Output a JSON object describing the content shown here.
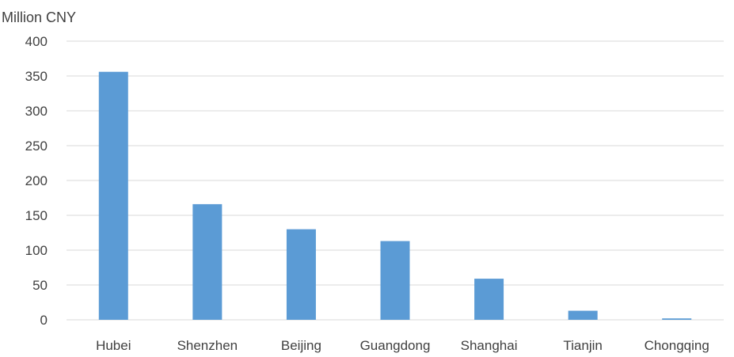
{
  "chart_data": {
    "type": "bar",
    "ylabel": "Million CNY",
    "xlabel": "",
    "categories": [
      "Hubei",
      "Shenzhen",
      "Beijing",
      "Guangdong",
      "Shanghai",
      "Tianjin",
      "Chongqing"
    ],
    "values": [
      356,
      166,
      130,
      113,
      59,
      13,
      2
    ],
    "ylim": [
      0,
      400
    ],
    "yticks": [
      0,
      50,
      100,
      150,
      200,
      250,
      300,
      350,
      400
    ],
    "grid": true,
    "legend": "none",
    "bar_color": "#5b9bd5",
    "grid_color": "#d9d9d9",
    "text_color": "#404040"
  }
}
